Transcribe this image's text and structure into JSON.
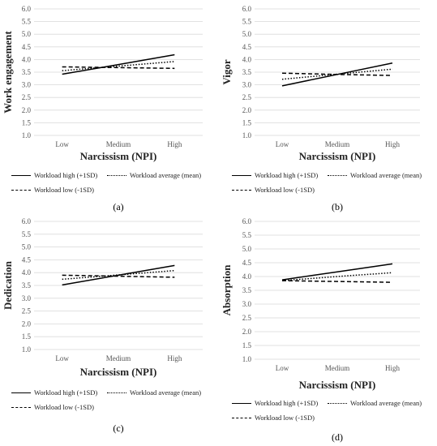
{
  "chart_data": [
    {
      "type": "line",
      "title": "",
      "xlabel": "Narcissism (NPI)",
      "ylabel": "Work engagement",
      "categories": [
        "Low",
        "Medium",
        "High"
      ],
      "yticks": [
        "1.0",
        "1.5",
        "2.0",
        "2.5",
        "3.0",
        "3.5",
        "4.0",
        "4.5",
        "5.0",
        "5.5",
        "6.0"
      ],
      "ylim": [
        1.0,
        6.0
      ],
      "grid": true,
      "legend_position": "bottom",
      "caption": "(a)",
      "series": [
        {
          "name": "Workload high (+1SD)",
          "style": "solid",
          "values": [
            3.42,
            3.8,
            4.19
          ]
        },
        {
          "name": "Workload average (mean)",
          "style": "dotted",
          "values": [
            3.56,
            3.74,
            3.92
          ]
        },
        {
          "name": "Workload low (-1SD)",
          "style": "dashed",
          "values": [
            3.71,
            3.68,
            3.65
          ]
        }
      ]
    },
    {
      "type": "line",
      "title": "",
      "xlabel": "Narcissism (NPI)",
      "ylabel": "Vigor",
      "categories": [
        "Low",
        "Medium",
        "High"
      ],
      "yticks": [
        "1.0",
        "1.5",
        "2.0",
        "2.5",
        "3.0",
        "3.5",
        "4.0",
        "4.5",
        "5.0",
        "5.5",
        "6.0"
      ],
      "ylim": [
        1.0,
        6.0
      ],
      "grid": true,
      "legend_position": "bottom",
      "caption": "(b)",
      "series": [
        {
          "name": "Workload high (+1SD)",
          "style": "solid",
          "values": [
            2.96,
            3.41,
            3.86
          ]
        },
        {
          "name": "Workload average (mean)",
          "style": "dotted",
          "values": [
            3.22,
            3.42,
            3.62
          ]
        },
        {
          "name": "Workload low (-1SD)",
          "style": "dashed",
          "values": [
            3.46,
            3.41,
            3.37
          ]
        }
      ]
    },
    {
      "type": "line",
      "title": "",
      "xlabel": "Narcissism (NPI)",
      "ylabel": "Dedication",
      "categories": [
        "Low",
        "Medium",
        "High"
      ],
      "yticks": [
        "1.0",
        "1.5",
        "2.0",
        "2.5",
        "3.0",
        "3.5",
        "4.0",
        "4.5",
        "5.0",
        "5.5",
        "6.0"
      ],
      "ylim": [
        1.0,
        6.0
      ],
      "grid": true,
      "legend_position": "bottom",
      "caption": "(c)",
      "series": [
        {
          "name": "Workload high (+1SD)",
          "style": "solid",
          "values": [
            3.52,
            3.9,
            4.28
          ]
        },
        {
          "name": "Workload average (mean)",
          "style": "dotted",
          "values": [
            3.74,
            3.91,
            4.08
          ]
        },
        {
          "name": "Workload low (-1SD)",
          "style": "dashed",
          "values": [
            3.9,
            3.86,
            3.82
          ]
        }
      ]
    },
    {
      "type": "line",
      "title": "",
      "xlabel": "Narcissism (NPI)",
      "ylabel": "Absorption",
      "categories": [
        "Low",
        "Medium",
        "High"
      ],
      "yticks": [
        "1.0",
        "1.5",
        "2.0",
        "2.5",
        "3.0",
        "3.5",
        "4.0",
        "4.5",
        "5.0",
        "5.5",
        "6.0"
      ],
      "ylim": [
        1.0,
        6.0
      ],
      "grid": true,
      "legend_position": "bottom",
      "caption": "(d)",
      "series": [
        {
          "name": "Workload high (+1SD)",
          "style": "solid",
          "values": [
            3.88,
            4.17,
            4.46
          ]
        },
        {
          "name": "Workload average (mean)",
          "style": "dotted",
          "values": [
            3.85,
            4.0,
            4.14
          ]
        },
        {
          "name": "Workload low (-1SD)",
          "style": "dashed",
          "values": [
            3.85,
            3.82,
            3.79
          ]
        }
      ]
    }
  ]
}
